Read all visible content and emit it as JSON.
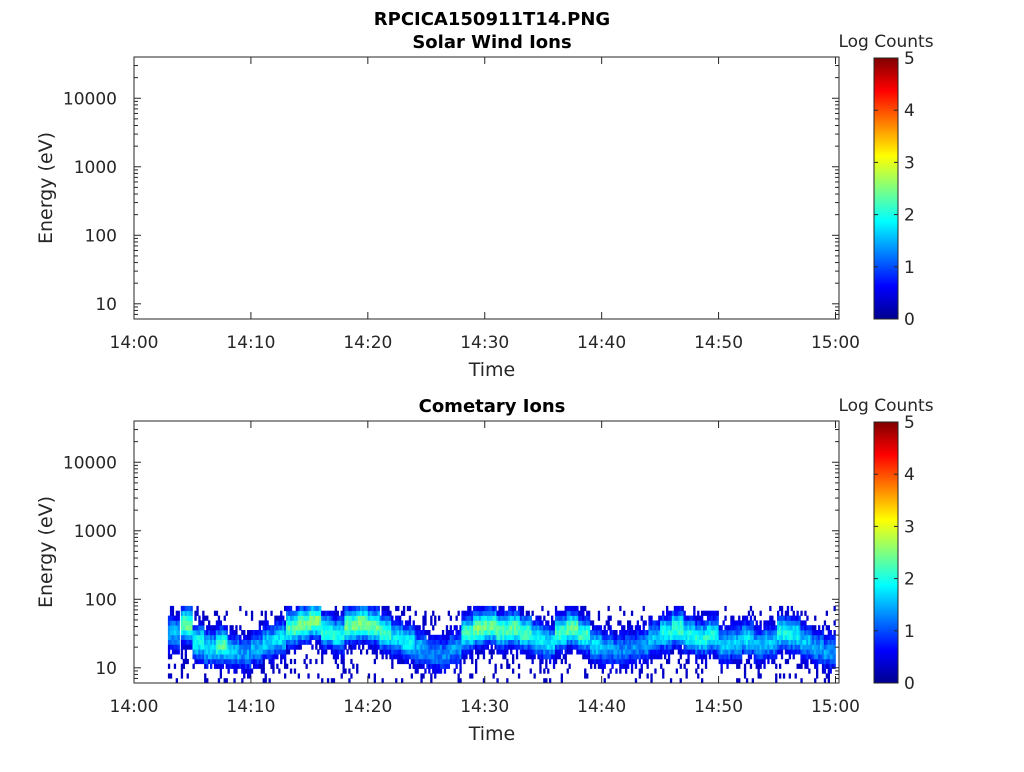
{
  "figure_title": "RPCICA150911T14.PNG",
  "chart_data": [
    {
      "type": "heatmap",
      "title": "Solar Wind Ions",
      "xlabel": "Time",
      "ylabel": "Energy (eV)",
      "x_ticks": [
        "14:00",
        "14:10",
        "14:20",
        "14:30",
        "14:40",
        "14:50",
        "15:00"
      ],
      "y_ticks": [
        "10",
        "100",
        "1000",
        "10000"
      ],
      "y_scale": "log",
      "xlim_minutes": [
        0,
        60.3
      ],
      "ylim": [
        6,
        40000
      ],
      "colorbar": {
        "label": "Log Counts",
        "ticks": [
          "0",
          "1",
          "2",
          "3",
          "4",
          "5"
        ],
        "range": [
          0,
          5
        ],
        "colormap": "jet"
      },
      "bands": []
    },
    {
      "type": "heatmap",
      "title": "Cometary Ions",
      "xlabel": "Time",
      "ylabel": "Energy (eV)",
      "x_ticks": [
        "14:00",
        "14:10",
        "14:20",
        "14:30",
        "14:40",
        "14:50",
        "15:00"
      ],
      "y_ticks": [
        "10",
        "100",
        "1000",
        "10000"
      ],
      "y_scale": "log",
      "xlim_minutes": [
        0,
        60.3
      ],
      "ylim": [
        6,
        40000
      ],
      "colorbar": {
        "label": "Log Counts",
        "ticks": [
          "0",
          "1",
          "2",
          "3",
          "4",
          "5"
        ],
        "range": [
          0,
          5
        ],
        "colormap": "jet"
      },
      "bands": [
        [
          3.4,
          30,
          1.5
        ],
        [
          4.5,
          40,
          2.4
        ],
        [
          5.5,
          22,
          2.0
        ],
        [
          6.5,
          18,
          1.8
        ],
        [
          7.5,
          20,
          2.3
        ],
        [
          8.5,
          16,
          1.6
        ],
        [
          9.5,
          15,
          1.4
        ],
        [
          10.5,
          18,
          1.5
        ],
        [
          11.5,
          22,
          1.7
        ],
        [
          12.5,
          25,
          1.8
        ],
        [
          13.5,
          35,
          2.3
        ],
        [
          14.5,
          40,
          2.5
        ],
        [
          15.5,
          45,
          2.6
        ],
        [
          16.5,
          32,
          2.1
        ],
        [
          17.5,
          28,
          2.0
        ],
        [
          18.5,
          38,
          2.4
        ],
        [
          19.5,
          42,
          2.5
        ],
        [
          20.5,
          38,
          2.4
        ],
        [
          21.5,
          30,
          2.2
        ],
        [
          22.5,
          25,
          1.8
        ],
        [
          23.5,
          22,
          1.9
        ],
        [
          24.5,
          18,
          1.5
        ],
        [
          25.5,
          15,
          1.3
        ],
        [
          26.5,
          15,
          1.3
        ],
        [
          27.5,
          18,
          1.4
        ],
        [
          28.5,
          30,
          2.2
        ],
        [
          29.5,
          35,
          2.5
        ],
        [
          30.5,
          38,
          2.4
        ],
        [
          31.5,
          32,
          2.3
        ],
        [
          32.5,
          35,
          2.4
        ],
        [
          33.5,
          30,
          2.2
        ],
        [
          34.5,
          25,
          1.9
        ],
        [
          35.5,
          22,
          1.8
        ],
        [
          36.5,
          30,
          2.2
        ],
        [
          37.5,
          35,
          2.4
        ],
        [
          38.5,
          28,
          2.2
        ],
        [
          39.5,
          20,
          1.7
        ],
        [
          40.5,
          18,
          1.4
        ],
        [
          41.5,
          17,
          1.3
        ],
        [
          42.5,
          18,
          1.3
        ],
        [
          43.5,
          20,
          1.4
        ],
        [
          44.5,
          25,
          1.6
        ],
        [
          45.5,
          30,
          2.0
        ],
        [
          46.5,
          35,
          2.2
        ],
        [
          47.5,
          28,
          1.9
        ],
        [
          48.5,
          25,
          2.0
        ],
        [
          49.5,
          28,
          2.0
        ],
        [
          50.5,
          20,
          1.6
        ],
        [
          51.5,
          22,
          1.6
        ],
        [
          52.5,
          25,
          1.8
        ],
        [
          53.5,
          20,
          1.5
        ],
        [
          54.5,
          22,
          1.6
        ],
        [
          55.5,
          30,
          2.0
        ],
        [
          56.5,
          28,
          1.9
        ],
        [
          57.5,
          22,
          1.6
        ],
        [
          58.5,
          18,
          1.5
        ],
        [
          59.5,
          16,
          1.4
        ]
      ]
    }
  ]
}
